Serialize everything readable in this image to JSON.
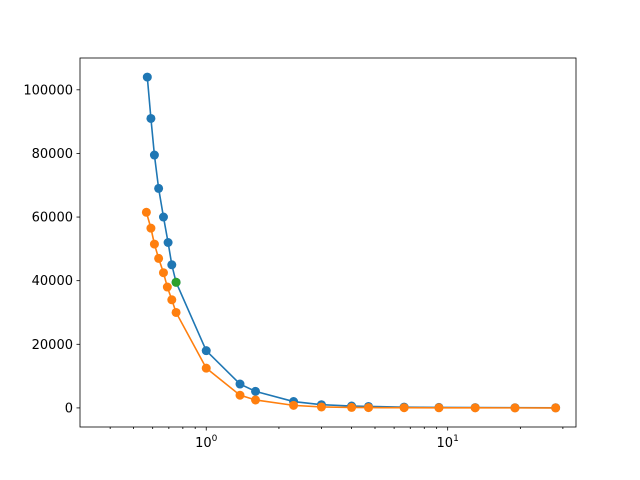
{
  "chart_data": {
    "type": "line",
    "x_scale": "log",
    "y_scale": "linear",
    "xlim": [
      0.3,
      34
    ],
    "ylim": [
      -6000,
      110000
    ],
    "grid": false,
    "title": "",
    "xlabel": "",
    "ylabel": "",
    "y_ticks": [
      0,
      20000,
      40000,
      60000,
      80000,
      100000
    ],
    "y_tick_labels": [
      "0",
      "20000",
      "40000",
      "60000",
      "80000",
      "100000"
    ],
    "x_major_ticks": [
      1,
      10
    ],
    "x_tick_labels": [
      {
        "base": "10",
        "exp": "0"
      },
      {
        "base": "10",
        "exp": "1"
      }
    ],
    "x_minor_ticks": [
      0.4,
      0.5,
      0.6,
      0.7,
      0.8,
      0.9,
      2,
      3,
      4,
      5,
      6,
      7,
      8,
      9,
      20,
      30
    ],
    "series": [
      {
        "color": "#1f77b4",
        "marker": "circle",
        "x": [
          0.57,
          0.59,
          0.61,
          0.635,
          0.665,
          0.695,
          0.72,
          0.75,
          1.0,
          1.38,
          1.6,
          2.3,
          3.0,
          4.0,
          4.7,
          6.6,
          9.2,
          13.0,
          19.0,
          28.0
        ],
        "y": [
          104000,
          91000,
          79500,
          69000,
          60000,
          52000,
          45000,
          39500,
          18000,
          7500,
          5200,
          2000,
          1000,
          600,
          450,
          250,
          150,
          100,
          60,
          40
        ]
      },
      {
        "color": "#ff7f0e",
        "marker": "circle",
        "x": [
          0.565,
          0.59,
          0.61,
          0.635,
          0.665,
          0.69,
          0.72,
          0.75,
          1.0,
          1.38,
          1.6,
          2.3,
          3.0,
          4.0,
          4.7,
          6.6,
          9.2,
          13.0,
          19.0,
          28.0
        ],
        "y": [
          61500,
          56500,
          51500,
          47000,
          42500,
          38000,
          34000,
          30000,
          12500,
          4000,
          2500,
          800,
          300,
          150,
          100,
          60,
          40,
          20,
          10,
          5
        ]
      },
      {
        "color": "#2ca02c",
        "marker": "circle",
        "x": [
          0.75
        ],
        "y": [
          39500
        ]
      }
    ]
  }
}
